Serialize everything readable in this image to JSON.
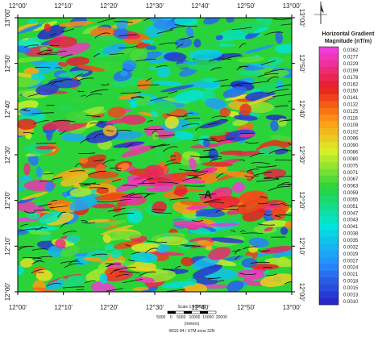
{
  "map": {
    "longitude_labels": [
      "12°00'",
      "12°10'",
      "12°20'",
      "12°30'",
      "12°40'",
      "12°50'",
      "13°00'"
    ],
    "latitude_labels": [
      "12°00'",
      "12°10'",
      "12°20'",
      "12°30'",
      "12°40'",
      "12°50'",
      "13°00'"
    ],
    "annotation": "A",
    "legend": {
      "title_line1": "Horizontal Gradient",
      "title_line2": "Magnitude (nT/m)",
      "labels": [
        "0.0362",
        "0.0277",
        "0.0229",
        "0.0199",
        "0.0178",
        "0.0162",
        "0.0150",
        "0.0141",
        "0.0132",
        "0.0125",
        "0.0116",
        "0.0109",
        "0.0102",
        "0.0096",
        "0.0090",
        "0.0086",
        "0.0080",
        "0.0075",
        "0.0071",
        "0.0067",
        "0.0063",
        "0.0059",
        "0.0055",
        "0.0051",
        "0.0047",
        "0.0043",
        "0.0041",
        "0.0038",
        "0.0035",
        "0.0032",
        "0.0029",
        "0.0027",
        "0.0024",
        "0.0021",
        "0.0018",
        "0.0015",
        "0.0013",
        "0.0010"
      ]
    },
    "scale": {
      "title": "Scale 1:400000",
      "ticks": "5000    0    5000   10000  15000  20000",
      "units": "(meters)",
      "projection": "WGS 84 / UTM zone 32N"
    }
  }
}
